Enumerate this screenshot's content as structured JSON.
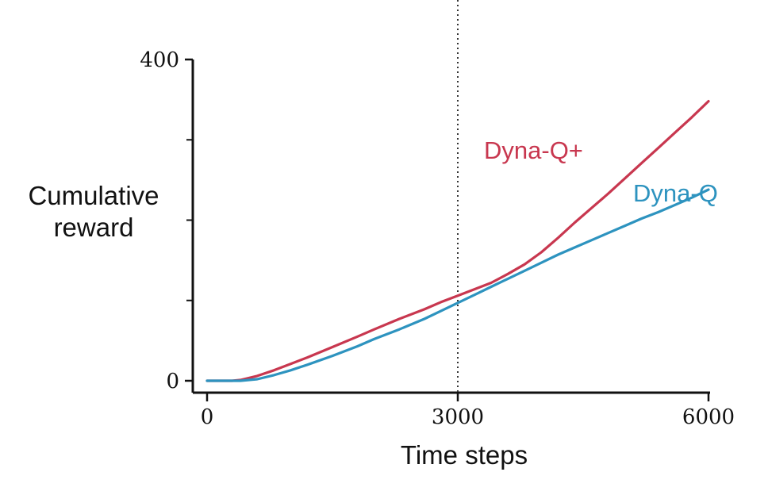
{
  "chart_data": {
    "type": "line",
    "title": "",
    "xlabel": "Time steps",
    "ylabel_lines": [
      "Cumulative",
      "reward"
    ],
    "xlim": [
      0,
      6000
    ],
    "ylim": [
      0,
      400
    ],
    "x_tick_values": [
      0,
      3000,
      6000
    ],
    "x_tick_labels": [
      "0",
      "3000",
      "6000"
    ],
    "y_major_ticks": [
      0,
      400
    ],
    "y_major_labels": [
      "0",
      "400"
    ],
    "y_minor_ticks": [
      100,
      200,
      300
    ],
    "grid": false,
    "legend": "inline labels next to lines",
    "vline": {
      "x": 3000,
      "style": "dotted"
    },
    "series": [
      {
        "name": "Dyna-Q+",
        "color": "#c8374f",
        "x": [
          0,
          300,
          400,
          600,
          800,
          1000,
          1200,
          1500,
          1800,
          2000,
          2300,
          2600,
          2800,
          3000,
          3200,
          3400,
          3600,
          3800,
          4000,
          4200,
          4400,
          4600,
          4800,
          5000,
          5200,
          5400,
          5600,
          5800,
          6000
        ],
        "y": [
          0,
          0,
          1,
          6,
          13,
          21,
          29,
          42,
          55,
          64,
          77,
          89,
          98,
          106,
          114,
          122,
          133,
          145,
          160,
          178,
          197,
          215,
          233,
          252,
          271,
          290,
          309,
          328,
          348
        ]
      },
      {
        "name": "Dyna-Q",
        "color": "#2d93bf",
        "x": [
          0,
          300,
          400,
          600,
          800,
          1000,
          1200,
          1500,
          1800,
          2000,
          2300,
          2600,
          2800,
          3000,
          3200,
          3400,
          3600,
          3800,
          4000,
          4200,
          4400,
          4600,
          4800,
          5000,
          5200,
          5400,
          5600,
          5800,
          6000
        ],
        "y": [
          0,
          0,
          0,
          2,
          7,
          13,
          20,
          31,
          43,
          52,
          64,
          77,
          87,
          97,
          107,
          117,
          127,
          137,
          147,
          157,
          166,
          175,
          184,
          193,
          202,
          210,
          219,
          228,
          238
        ]
      }
    ]
  }
}
